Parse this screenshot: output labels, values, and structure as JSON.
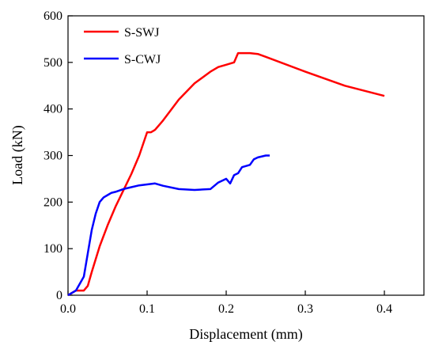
{
  "chart_data": {
    "type": "line",
    "title": "",
    "xlabel": "Displacement (mm)",
    "ylabel": "Load (kN)",
    "xlim": [
      0.0,
      0.45
    ],
    "ylim": [
      0,
      600
    ],
    "xticks": [
      "0.0",
      "0.1",
      "0.2",
      "0.3",
      "0.4"
    ],
    "yticks": [
      "0",
      "100",
      "200",
      "300",
      "400",
      "500",
      "600"
    ],
    "grid": false,
    "legend": "top-left",
    "series": [
      {
        "name": "S-SWJ",
        "color": "#ff0000",
        "x": [
          0.0,
          0.01,
          0.02,
          0.025,
          0.03,
          0.04,
          0.05,
          0.06,
          0.07,
          0.08,
          0.09,
          0.1,
          0.105,
          0.11,
          0.12,
          0.14,
          0.16,
          0.18,
          0.19,
          0.2,
          0.21,
          0.215,
          0.22,
          0.23,
          0.24,
          0.25,
          0.3,
          0.35,
          0.4
        ],
        "y": [
          0,
          10,
          10,
          20,
          50,
          105,
          150,
          190,
          225,
          260,
          300,
          350,
          350,
          355,
          375,
          420,
          455,
          480,
          490,
          495,
          500,
          520,
          520,
          520,
          518,
          512,
          480,
          450,
          428
        ]
      },
      {
        "name": "S-CWJ",
        "color": "#0000ff",
        "x": [
          0.0,
          0.01,
          0.02,
          0.025,
          0.03,
          0.035,
          0.04,
          0.045,
          0.05,
          0.055,
          0.06,
          0.07,
          0.08,
          0.09,
          0.1,
          0.11,
          0.12,
          0.14,
          0.16,
          0.18,
          0.19,
          0.2,
          0.205,
          0.21,
          0.215,
          0.22,
          0.23,
          0.235,
          0.24,
          0.25,
          0.255
        ],
        "y": [
          0,
          10,
          40,
          90,
          140,
          175,
          200,
          210,
          215,
          220,
          222,
          228,
          232,
          236,
          238,
          240,
          235,
          228,
          226,
          228,
          242,
          250,
          240,
          258,
          262,
          275,
          280,
          292,
          296,
          300,
          300
        ]
      }
    ]
  }
}
